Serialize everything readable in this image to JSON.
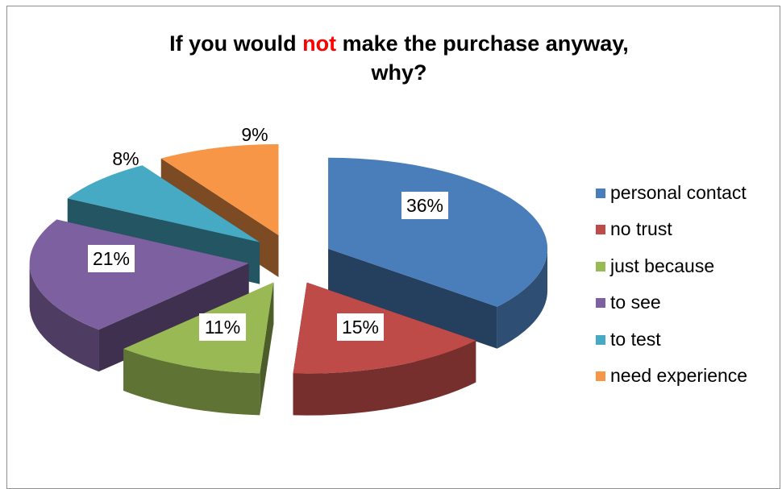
{
  "title": {
    "before": "If you would ",
    "highlight": "not",
    "after": " make the purchase anyway,",
    "line2": "why?"
  },
  "colors": {
    "highlight": "#ff0000",
    "series": [
      "#4a7ebb",
      "#be4b48",
      "#98b954",
      "#7d60a0",
      "#46aac5",
      "#f79646"
    ]
  },
  "chart_data": {
    "type": "pie",
    "title": "If you would not make the purchase anyway, why?",
    "style": "3d-exploded",
    "categories": [
      "personal contact",
      "no trust",
      "just because",
      "to see",
      "to test",
      "need experience"
    ],
    "values": [
      36,
      15,
      11,
      21,
      8,
      9
    ],
    "data_labels": [
      "36%",
      "15%",
      "11%",
      "21%",
      "8%",
      "9%"
    ],
    "legend_position": "right"
  }
}
